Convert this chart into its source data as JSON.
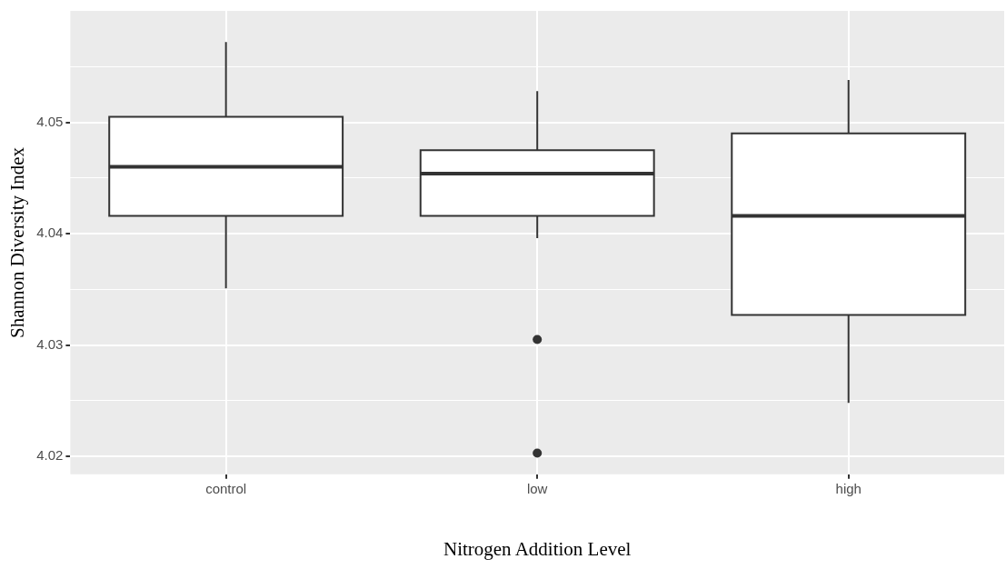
{
  "chart_data": {
    "type": "box",
    "xlabel": "Nitrogen Addition Level",
    "ylabel": "Shannon Diversity Index",
    "categories": [
      "control",
      "low",
      "high"
    ],
    "boxes": [
      {
        "low": 4.0351,
        "q1": 4.0416,
        "median": 4.046,
        "q3": 4.0505,
        "high": 4.0572
      },
      {
        "low": 4.0396,
        "q1": 4.0416,
        "median": 4.0454,
        "q3": 4.0475,
        "high": 4.0528,
        "outliers": [
          4.0305,
          4.0203
        ]
      },
      {
        "low": 4.0248,
        "q1": 4.0327,
        "median": 4.0416,
        "q3": 4.049,
        "high": 4.0538
      }
    ],
    "ylim": [
      4.0184,
      4.06
    ],
    "yticks": [
      4.02,
      {
        "value": 4.025,
        "label": null
      },
      4.03,
      {
        "value": 4.035,
        "label": null
      },
      4.04,
      {
        "value": 4.045,
        "label": null
      },
      4.05,
      {
        "value": 4.055,
        "label": null
      }
    ],
    "grid": true
  }
}
